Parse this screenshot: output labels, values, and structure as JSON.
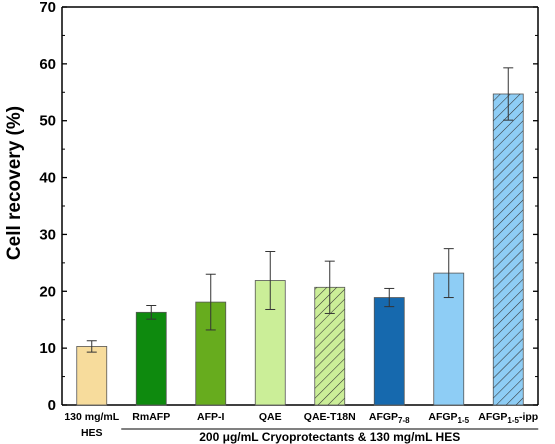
{
  "chart_data": {
    "type": "bar",
    "ylabel": "Cell recovery (%)",
    "ylim": [
      0,
      70
    ],
    "yticks": [
      0,
      10,
      20,
      30,
      40,
      50,
      60,
      70
    ],
    "group_label": "200 μg/mL Cryoprotectants & 130 mg/mL HES",
    "grid": false,
    "categories": [
      {
        "label": "130 mg/mL",
        "label2": "HES"
      },
      {
        "label": "RmAFP"
      },
      {
        "label": "AFP-I"
      },
      {
        "label": "QAE"
      },
      {
        "label": "QAE-T18N"
      },
      {
        "label": "AFGP",
        "sub": "7-8"
      },
      {
        "label": "AFGP",
        "sub": "1-5"
      },
      {
        "label": "AFGP",
        "sub": "1-5",
        "suffix": "-ipp"
      }
    ],
    "values": [
      10.3,
      16.3,
      18.1,
      21.9,
      20.7,
      18.9,
      23.2,
      54.7
    ],
    "errors": [
      1.0,
      1.2,
      4.9,
      5.1,
      4.6,
      1.6,
      4.3,
      4.6
    ],
    "colors": [
      "#F7DC9C",
      "#0E8A0E",
      "#67AC1E",
      "#CBEE98",
      "#CBEE98",
      "#1669AE",
      "#8ECDF5",
      "#8ECDF5"
    ],
    "hatched": [
      false,
      false,
      false,
      false,
      true,
      false,
      false,
      true
    ]
  }
}
